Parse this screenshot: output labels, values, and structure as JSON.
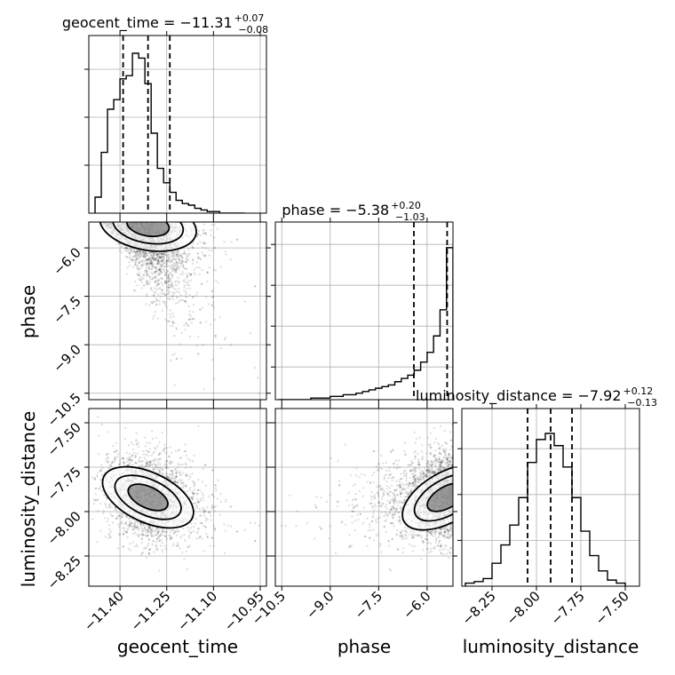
{
  "chart_data": {
    "type": "corner",
    "parameters": [
      "geocent_time",
      "phase",
      "luminosity_distance"
    ],
    "diagonal_titles": [
      {
        "param": "geocent_time",
        "text": "geocent_time = −11.31",
        "plus": "+0.07",
        "minus": "−0.08"
      },
      {
        "param": "phase",
        "text": "phase = −5.38",
        "plus": "+0.20",
        "minus": "−1.03"
      },
      {
        "param": "luminosity_distance",
        "text": "luminosity_distance = −7.92",
        "plus": "+0.12",
        "minus": "−0.13"
      }
    ],
    "axes": {
      "geocent_time": {
        "range": [
          -11.5,
          -10.93
        ],
        "ticks": [
          -11.4,
          -11.25,
          -11.1,
          -10.95
        ],
        "tick_labels": [
          "−11.40",
          "−11.25",
          "−11.10",
          "−10.95"
        ],
        "quantiles": [
          -11.39,
          -11.31,
          -11.24
        ]
      },
      "phase": {
        "range": [
          -10.7,
          -5.2
        ],
        "ticks": [
          -10.5,
          -9.0,
          -7.5,
          -6.0
        ],
        "tick_labels": [
          "−10.5",
          "−9.0",
          "−7.5",
          "−6.0"
        ],
        "quantiles": [
          -6.41,
          -5.38,
          -5.18
        ]
      },
      "luminosity_distance": {
        "range": [
          -8.42,
          -7.42
        ],
        "ticks": [
          -8.25,
          -8.0,
          -7.75,
          -7.5
        ],
        "tick_labels": [
          "−8.25",
          "−8.00",
          "−7.75",
          "−7.50"
        ],
        "quantiles": [
          -8.05,
          -7.92,
          -7.8
        ]
      }
    },
    "hist_geocent_time": {
      "edges": [
        -11.48,
        -11.46,
        -11.44,
        -11.42,
        -11.4,
        -11.38,
        -11.36,
        -11.34,
        -11.32,
        -11.3,
        -11.28,
        -11.26,
        -11.24,
        -11.22,
        -11.2,
        -11.18,
        -11.16,
        -11.14,
        -11.12,
        -11.1,
        -11.08,
        -11.06,
        -11.04,
        -11.02,
        -11.0
      ],
      "counts": [
        0.1,
        0.38,
        0.65,
        0.71,
        0.84,
        0.86,
        1.0,
        0.97,
        0.81,
        0.5,
        0.28,
        0.19,
        0.13,
        0.08,
        0.06,
        0.05,
        0.03,
        0.02,
        0.01,
        0.01,
        0.0,
        0.0,
        0.0,
        0.0
      ]
    },
    "hist_phase": {
      "edges": [
        -10.6,
        -10.4,
        -10.2,
        -10.0,
        -9.8,
        -9.6,
        -9.4,
        -9.2,
        -9.0,
        -8.8,
        -8.6,
        -8.4,
        -8.2,
        -8.0,
        -7.8,
        -7.6,
        -7.4,
        -7.2,
        -7.0,
        -6.8,
        -6.6,
        -6.4,
        -6.2,
        -6.0,
        -5.8,
        -5.6,
        -5.4,
        -5.2
      ],
      "counts": [
        0.0,
        0.0,
        0.0,
        0.0,
        0.0,
        0.01,
        0.01,
        0.01,
        0.02,
        0.02,
        0.03,
        0.03,
        0.04,
        0.05,
        0.06,
        0.07,
        0.08,
        0.09,
        0.11,
        0.13,
        0.15,
        0.18,
        0.23,
        0.29,
        0.39,
        0.55,
        0.93
      ]
    },
    "hist_luminosity_distance": {
      "edges": [
        -8.4,
        -8.35,
        -8.3,
        -8.25,
        -8.2,
        -8.15,
        -8.1,
        -8.05,
        -8.0,
        -7.95,
        -7.9,
        -7.85,
        -7.8,
        -7.75,
        -7.7,
        -7.65,
        -7.6,
        -7.55,
        -7.5
      ],
      "counts": [
        0.02,
        0.03,
        0.05,
        0.15,
        0.27,
        0.4,
        0.58,
        0.81,
        0.96,
        1.0,
        0.92,
        0.78,
        0.58,
        0.36,
        0.2,
        0.1,
        0.04,
        0.02
      ]
    },
    "axis_labels": {
      "x": [
        "geocent_time",
        "phase",
        "luminosity_distance"
      ],
      "y": [
        "phase",
        "luminosity_distance"
      ]
    },
    "grid": true
  }
}
